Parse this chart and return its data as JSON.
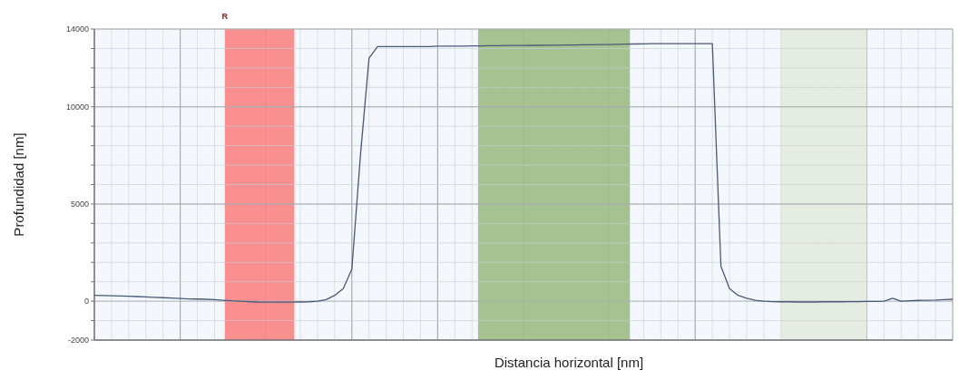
{
  "chart_data": {
    "type": "line",
    "xlabel": "Distancia horizontal [nm]",
    "ylabel": "Profundidad [nm]",
    "categories": [
      null,
      null,
      null,
      null,
      null,
      null,
      null,
      null,
      null,
      null,
      null,
      null,
      null,
      null,
      null,
      null,
      null,
      null,
      null,
      null,
      null,
      null,
      null,
      null,
      null,
      null,
      null,
      null,
      null,
      null,
      null,
      null,
      null,
      null,
      null,
      null,
      null,
      null,
      null,
      null,
      null,
      null,
      null,
      null,
      null,
      null,
      null,
      null,
      null,
      null,
      null,
      null,
      null,
      null,
      null,
      null,
      null,
      null,
      null,
      null,
      null,
      null,
      null,
      null,
      null,
      null,
      null,
      null,
      null,
      null,
      null,
      null,
      null,
      null,
      null,
      null,
      null,
      null,
      null,
      null,
      null,
      null,
      null,
      null,
      null,
      null,
      null,
      null,
      null,
      null,
      null,
      null,
      null,
      null,
      null,
      null,
      null,
      null,
      null,
      null,
      null
    ],
    "series": [
      {
        "color": "#4a5878",
        "values": [
          300,
          290,
          280,
          270,
          260,
          240,
          220,
          200,
          180,
          160,
          140,
          120,
          110,
          100,
          80,
          50,
          20,
          0,
          -20,
          -40,
          -50,
          -50,
          -50,
          -50,
          -40,
          -30,
          0,
          80,
          300,
          650,
          1650,
          7500,
          12500,
          13100,
          13100,
          13100,
          13100,
          13100,
          13100,
          13100,
          13120,
          13120,
          13120,
          13120,
          13130,
          13130,
          13140,
          13140,
          13150,
          13150,
          13150,
          13160,
          13160,
          13170,
          13170,
          13180,
          13180,
          13190,
          13190,
          13200,
          13200,
          13210,
          13220,
          13230,
          13240,
          13250,
          13250,
          13250,
          13250,
          13250,
          13250,
          13250,
          13250,
          1800,
          650,
          300,
          150,
          50,
          0,
          -20,
          -30,
          -30,
          -40,
          -40,
          -40,
          -30,
          -30,
          -30,
          -20,
          -20,
          -10,
          -10,
          0,
          150,
          0,
          20,
          40,
          50,
          60,
          80,
          100
        ]
      }
    ],
    "ylim": [
      -2000,
      14000
    ],
    "yticks": [
      {
        "value": -2000,
        "label": "-2000"
      },
      {
        "value": -1000,
        "label": null
      },
      0,
      {
        "value": 1000,
        "label": null
      },
      {
        "value": 2000,
        "label": null
      },
      {
        "value": 3000,
        "label": null
      },
      {
        "value": 4000,
        "label": null
      },
      5000,
      {
        "value": 6000,
        "label": null
      },
      {
        "value": 7000,
        "label": null
      },
      {
        "value": 8000,
        "label": null
      },
      {
        "value": 9000,
        "label": null
      },
      10000,
      {
        "value": 11000,
        "label": null
      },
      {
        "value": 12000,
        "label": null
      },
      {
        "value": 13000,
        "label": null
      },
      14000
    ],
    "annotations": [
      "R"
    ],
    "grid": true,
    "marker": "none",
    "line_style": "solid"
  }
}
